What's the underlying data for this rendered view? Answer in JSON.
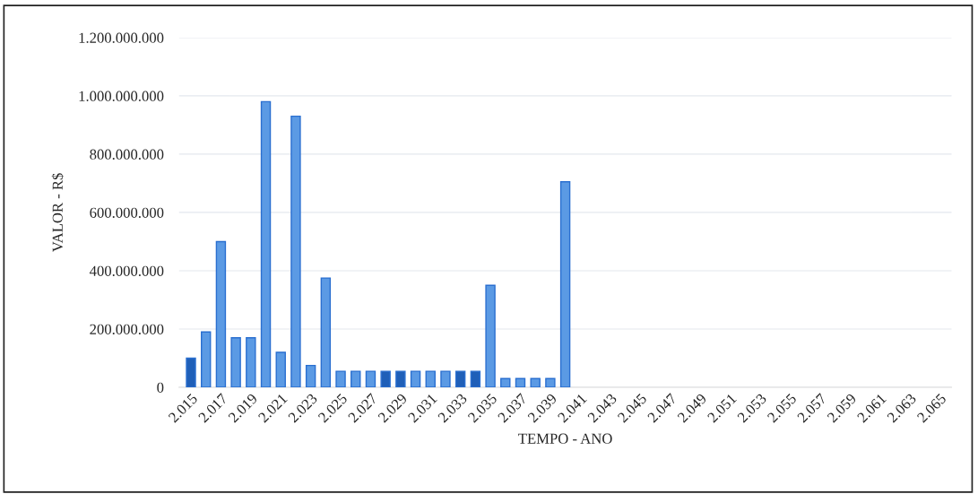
{
  "chart_data": {
    "type": "bar",
    "xlabel": "TEMPO - ANO",
    "ylabel": "VALOR - R$",
    "categories": [
      "2.015",
      null,
      "2.017",
      null,
      "2.019",
      null,
      "2.021",
      null,
      "2.023",
      null,
      "2.025",
      null,
      "2.027",
      null,
      "2.029",
      null,
      "2.031",
      null,
      "2.033",
      null,
      "2.035",
      null,
      "2.037",
      null,
      "2.039",
      null,
      "2.041",
      null,
      "2.043",
      null,
      "2.045",
      null,
      "2.047",
      null,
      "2.049",
      null,
      "2.051",
      null,
      "2.053",
      null,
      "2.055",
      null,
      "2.057",
      null,
      "2.059",
      null,
      "2.061",
      null,
      "2.063",
      null,
      "2.065"
    ],
    "values": [
      100000000,
      190000000,
      500000000,
      170000000,
      170000000,
      980000000,
      120000000,
      930000000,
      75000000,
      375000000,
      55000000,
      55000000,
      55000000,
      55000000,
      55000000,
      55000000,
      55000000,
      55000000,
      55000000,
      55000000,
      350000000,
      30000000,
      30000000,
      30000000,
      30000000,
      705000000,
      null,
      null,
      null,
      null,
      null,
      null,
      null,
      null,
      null,
      null,
      null,
      null,
      null,
      null,
      null,
      null,
      null,
      null,
      null,
      null,
      null,
      null,
      null,
      null,
      null
    ],
    "colors": [
      "#1f5fb8",
      "#5b9ae4",
      "#5b9ae4",
      "#5b9ae4",
      "#5b9ae4",
      "#5b9ae4",
      "#5b9ae4",
      "#5b9ae4",
      "#5b9ae4",
      "#5b9ae4",
      "#5b9ae4",
      "#5b9ae4",
      "#5b9ae4",
      "#1f5fb8",
      "#1f5fb8",
      "#5b9ae4",
      "#5b9ae4",
      "#5b9ae4",
      "#1f5fb8",
      "#1f5fb8",
      "#5b9ae4",
      "#5b9ae4",
      "#5b9ae4",
      "#5b9ae4",
      "#5b9ae4",
      "#5b9ae4",
      "#5b9ae4",
      "#5b9ae4",
      "#5b9ae4",
      "#5b9ae4",
      "#5b9ae4",
      "#5b9ae4",
      "#5b9ae4",
      "#5b9ae4",
      "#5b9ae4",
      "#5b9ae4",
      "#5b9ae4",
      "#5b9ae4",
      "#5b9ae4",
      "#5b9ae4",
      "#5b9ae4",
      "#5b9ae4",
      "#5b9ae4",
      "#5b9ae4",
      "#5b9ae4",
      "#5b9ae4",
      "#5b9ae4",
      "#5b9ae4",
      "#5b9ae4",
      "#5b9ae4",
      "#5b9ae4"
    ],
    "ylim": [
      0,
      1200000000
    ],
    "yticks": [
      0,
      {
        "value": 200000000,
        "label": "200.000.000"
      },
      {
        "value": 400000000,
        "label": "400.000.000"
      },
      {
        "value": 600000000,
        "label": "600.000.000"
      },
      {
        "value": 800000000,
        "label": "800.000.000"
      },
      {
        "value": 1000000000,
        "label": "1.000.000.000"
      },
      {
        "value": 1200000000,
        "label": "1.200.000.000"
      }
    ],
    "grid": "y"
  }
}
